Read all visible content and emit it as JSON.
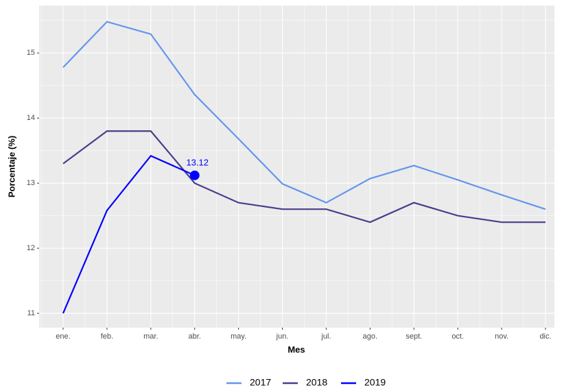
{
  "chart_data": {
    "type": "line",
    "x_label": "Mes",
    "y_label": "Porcentaje (%)",
    "categories": [
      "ene.",
      "feb.",
      "mar.",
      "abr.",
      "may.",
      "jun.",
      "jul.",
      "ago.",
      "sept.",
      "oct.",
      "nov.",
      "dic."
    ],
    "series": [
      {
        "name": "2017",
        "color": "#6495ED",
        "values": [
          14.78,
          15.48,
          15.29,
          14.36,
          13.68,
          12.99,
          12.7,
          13.07,
          13.27,
          13.05,
          12.82,
          12.6
        ]
      },
      {
        "name": "2018",
        "color": "#483D8B",
        "values": [
          13.3,
          13.8,
          13.8,
          13.0,
          12.7,
          12.6,
          12.6,
          12.4,
          12.7,
          12.5,
          12.4,
          12.4
        ]
      },
      {
        "name": "2019",
        "color": "#0000FF",
        "values": [
          11.0,
          12.58,
          13.42,
          13.12,
          null,
          null,
          null,
          null,
          null,
          null,
          null,
          null
        ]
      }
    ],
    "labeled_points": [
      {
        "series": 2,
        "index": 3
      }
    ],
    "ylim": [
      10.78,
      15.73
    ],
    "yticks": [
      11,
      12,
      13,
      14,
      15
    ],
    "grid": true,
    "legend": "bottom"
  }
}
